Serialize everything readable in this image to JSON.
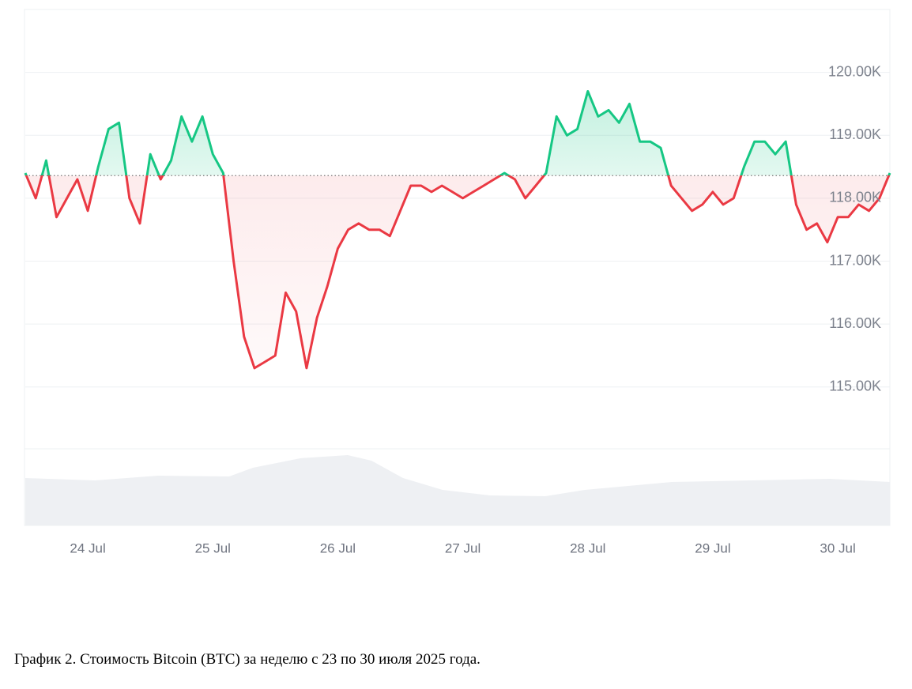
{
  "chart_data": {
    "type": "line",
    "caption": "График 2. Стоимость Bitcoin (BTC) за неделю с 23 по 30 июля 2025 года.",
    "categories": [
      null,
      null,
      null,
      null,
      null,
      null,
      "24 Jul",
      null,
      null,
      null,
      null,
      null,
      null,
      null,
      null,
      null,
      null,
      null,
      "25 Jul",
      null,
      null,
      null,
      null,
      null,
      null,
      null,
      null,
      null,
      null,
      null,
      "26 Jul",
      null,
      null,
      null,
      null,
      null,
      null,
      null,
      null,
      null,
      null,
      null,
      "27 Jul",
      null,
      null,
      null,
      null,
      null,
      null,
      null,
      null,
      null,
      null,
      null,
      "28 Jul",
      null,
      null,
      null,
      null,
      null,
      null,
      null,
      null,
      null,
      null,
      null,
      "29 Jul",
      null,
      null,
      null,
      null,
      null,
      null,
      null,
      null,
      null,
      null,
      null,
      "30 Jul",
      null,
      null,
      null,
      null,
      null
    ],
    "values": [
      118.4,
      118.0,
      118.6,
      117.7,
      118.0,
      118.3,
      117.8,
      118.5,
      119.1,
      119.2,
      118.0,
      117.6,
      118.7,
      118.3,
      118.6,
      119.3,
      118.9,
      119.3,
      118.7,
      118.4,
      117.0,
      115.8,
      115.3,
      115.4,
      115.5,
      116.5,
      116.2,
      115.3,
      116.1,
      116.6,
      117.2,
      117.5,
      117.6,
      117.5,
      117.5,
      117.4,
      117.8,
      118.2,
      118.2,
      118.1,
      118.2,
      118.1,
      118.0,
      118.1,
      118.2,
      118.3,
      118.4,
      118.3,
      118.0,
      118.2,
      118.4,
      119.3,
      119.0,
      119.1,
      119.7,
      119.3,
      119.4,
      119.2,
      119.5,
      118.9,
      118.9,
      118.8,
      118.2,
      118.0,
      117.8,
      117.9,
      118.1,
      117.9,
      118.0,
      118.5,
      118.9,
      118.9,
      118.7,
      118.9,
      117.9,
      117.5,
      117.6,
      117.3,
      117.7,
      117.7,
      117.9,
      117.8,
      118.0,
      118.4
    ],
    "baseline": 118.36,
    "up_color": "#16c784",
    "down_color": "#ea3943",
    "ylim": [
      112.8,
      121.0
    ],
    "yticks": [
      {
        "value": 115,
        "label": "115.00K"
      },
      {
        "value": 116,
        "label": "116.00K"
      },
      {
        "value": 117,
        "label": "117.00K"
      },
      {
        "value": 118,
        "label": "118.00K"
      },
      {
        "value": 119,
        "label": "119.00K"
      },
      {
        "value": 120,
        "label": "120.00K"
      }
    ],
    "grid": true
  }
}
